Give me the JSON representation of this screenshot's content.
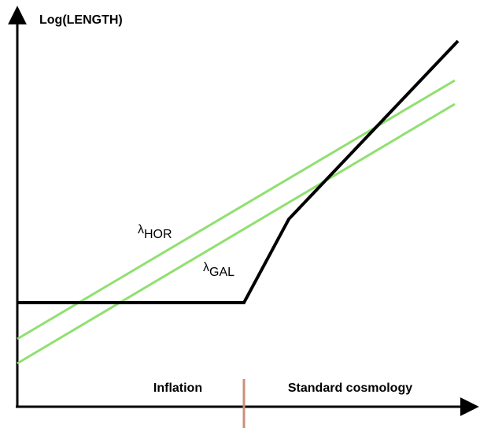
{
  "axes": {
    "y_label": "Log(LENGTH)"
  },
  "curves": [
    {
      "symbol": "λ",
      "subscript": "HOR"
    },
    {
      "symbol": "λ",
      "subscript": "GAL"
    }
  ],
  "regions": [
    "Inflation",
    "Standard cosmology"
  ]
}
